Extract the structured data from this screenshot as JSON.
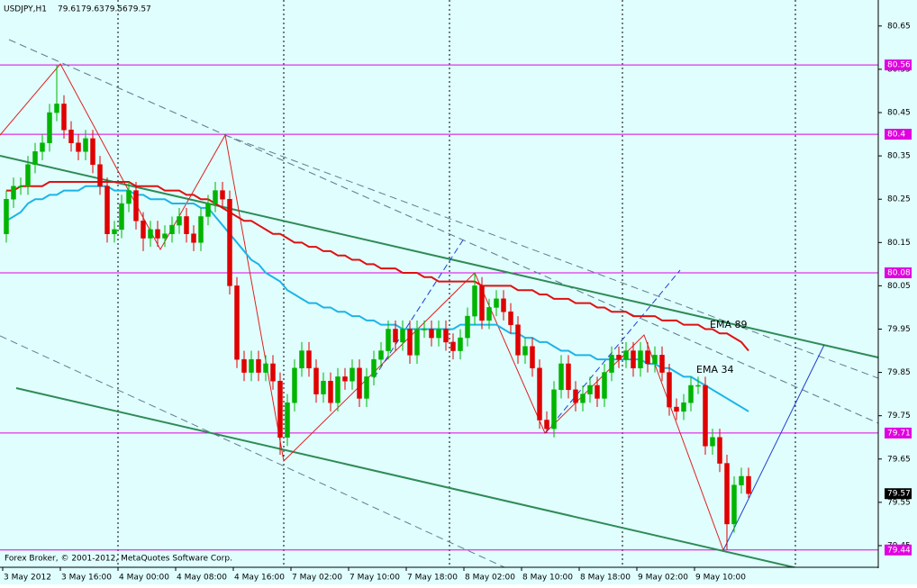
{
  "chart_data": {
    "type": "candlestick",
    "symbol": "USDJPY,H1",
    "footer": "Forex Broker, © 2001-2012, MetaQuotes Software Corp.",
    "up_color": "#00b400",
    "down_color": "#e00000",
    "grid": false,
    "x_labels": [
      "3 May 2012",
      "3 May 16:00",
      "4 May 00:00",
      "4 May 08:00",
      "4 May 16:00",
      "7 May 02:00",
      "7 May 10:00",
      "7 May 18:00",
      "8 May 02:00",
      "8 May 10:00",
      "8 May 18:00",
      "9 May 02:00",
      "9 May 10:00"
    ],
    "ylim": [
      79.4,
      80.71
    ],
    "yticks": [
      80.65,
      80.55,
      80.45,
      80.35,
      80.25,
      80.15,
      80.05,
      79.95,
      79.85,
      79.75,
      79.65,
      79.55,
      79.45
    ],
    "open": [
      80.17,
      80.25,
      80.28,
      80.28,
      80.33,
      80.36,
      80.38,
      80.45,
      80.47,
      80.41,
      80.38,
      80.36,
      80.39,
      80.33,
      80.28,
      80.17,
      80.18,
      80.24,
      80.27,
      80.2,
      80.16,
      80.18,
      80.16,
      80.17,
      80.19,
      80.21,
      80.17,
      80.15,
      80.21,
      80.24,
      80.27,
      80.25,
      80.05,
      79.88,
      79.85,
      79.88,
      79.85,
      79.87,
      79.83,
      79.7,
      79.78,
      79.86,
      79.9,
      79.86,
      79.8,
      79.83,
      79.78,
      79.84,
      79.83,
      79.86,
      79.79,
      79.84,
      79.88,
      79.9,
      79.95,
      79.92,
      79.95,
      79.89,
      79.95,
      79.95,
      79.93,
      79.95,
      79.92,
      79.9,
      79.93,
      79.98,
      80.05,
      79.97,
      80.0,
      80.02,
      79.99,
      79.96,
      79.89,
      79.91,
      79.86,
      79.74,
      79.72,
      79.81,
      79.87,
      79.81,
      79.78,
      79.8,
      79.82,
      79.79,
      79.85,
      79.89,
      79.88,
      79.9,
      79.86,
      79.9,
      79.87,
      79.89,
      79.85,
      79.77,
      79.76,
      79.78,
      79.82,
      79.82,
      79.68,
      79.7,
      79.64,
      79.5,
      79.59,
      79.61
    ],
    "high": [
      80.27,
      80.3,
      80.3,
      80.35,
      80.38,
      80.4,
      80.47,
      80.56,
      80.49,
      80.43,
      80.4,
      80.41,
      80.41,
      80.35,
      80.3,
      80.2,
      80.26,
      80.29,
      80.29,
      80.22,
      80.2,
      80.2,
      80.19,
      80.21,
      80.23,
      80.23,
      80.19,
      80.23,
      80.26,
      80.29,
      80.29,
      80.27,
      80.07,
      79.9,
      79.9,
      79.9,
      79.89,
      79.89,
      79.85,
      79.8,
      79.88,
      79.92,
      79.92,
      79.88,
      79.85,
      79.85,
      79.86,
      79.86,
      79.88,
      79.88,
      79.86,
      79.9,
      79.92,
      79.97,
      79.97,
      79.97,
      79.97,
      79.97,
      79.97,
      79.97,
      79.97,
      79.97,
      79.94,
      79.95,
      80.0,
      80.08,
      80.07,
      80.02,
      80.04,
      80.04,
      80.01,
      79.98,
      79.93,
      79.93,
      79.88,
      79.76,
      79.83,
      79.89,
      79.89,
      79.83,
      79.82,
      79.84,
      79.84,
      79.87,
      79.91,
      79.91,
      79.92,
      79.92,
      79.92,
      79.92,
      79.91,
      79.91,
      79.87,
      79.79,
      79.8,
      79.84,
      79.84,
      79.84,
      79.72,
      79.72,
      79.66,
      79.61,
      79.63,
      79.63
    ],
    "low": [
      80.15,
      80.23,
      80.26,
      80.26,
      80.31,
      80.34,
      80.36,
      80.43,
      80.39,
      80.36,
      80.34,
      80.34,
      80.31,
      80.26,
      80.15,
      80.15,
      80.16,
      80.22,
      80.18,
      80.13,
      80.14,
      80.14,
      80.14,
      80.15,
      80.17,
      80.15,
      80.13,
      80.13,
      80.19,
      80.22,
      80.23,
      80.03,
      79.86,
      79.83,
      79.83,
      79.83,
      79.83,
      79.81,
      79.66,
      79.68,
      79.76,
      79.84,
      79.84,
      79.78,
      79.78,
      79.76,
      79.76,
      79.81,
      79.81,
      79.77,
      79.77,
      79.82,
      79.86,
      79.88,
      79.9,
      79.9,
      79.87,
      79.87,
      79.93,
      79.91,
      79.91,
      79.9,
      79.88,
      79.88,
      79.91,
      79.96,
      79.95,
      79.95,
      79.98,
      79.97,
      79.94,
      79.87,
      79.87,
      79.84,
      79.72,
      79.71,
      79.7,
      79.79,
      79.79,
      79.76,
      79.76,
      79.78,
      79.77,
      79.77,
      79.83,
      79.86,
      79.86,
      79.84,
      79.84,
      79.85,
      79.85,
      79.83,
      79.75,
      79.74,
      79.74,
      79.76,
      79.8,
      79.66,
      79.66,
      79.62,
      79.44,
      79.48,
      79.57,
      79.56
    ],
    "close": [
      80.25,
      80.28,
      80.28,
      80.33,
      80.36,
      80.38,
      80.45,
      80.47,
      80.41,
      80.38,
      80.36,
      80.39,
      80.33,
      80.28,
      80.17,
      80.18,
      80.24,
      80.27,
      80.2,
      80.16,
      80.18,
      80.16,
      80.17,
      80.19,
      80.21,
      80.17,
      80.15,
      80.21,
      80.24,
      80.27,
      80.25,
      80.05,
      79.88,
      79.85,
      79.88,
      79.85,
      79.87,
      79.83,
      79.7,
      79.78,
      79.86,
      79.9,
      79.86,
      79.8,
      79.83,
      79.78,
      79.84,
      79.83,
      79.86,
      79.79,
      79.84,
      79.88,
      79.9,
      79.95,
      79.92,
      79.95,
      79.89,
      79.95,
      79.95,
      79.93,
      79.95,
      79.92,
      79.9,
      79.93,
      79.98,
      80.05,
      79.97,
      80.0,
      80.02,
      79.99,
      79.96,
      79.89,
      79.91,
      79.86,
      79.74,
      79.72,
      79.81,
      79.87,
      79.81,
      79.78,
      79.8,
      79.82,
      79.79,
      79.85,
      79.89,
      79.88,
      79.9,
      79.86,
      79.9,
      79.87,
      79.89,
      79.85,
      79.77,
      79.76,
      79.78,
      79.82,
      79.82,
      79.68,
      79.7,
      79.64,
      79.5,
      79.59,
      79.61,
      79.57
    ],
    "series": [
      {
        "name": "EMA 34",
        "color": "#1eb4e6",
        "values": [
          80.2,
          80.21,
          80.22,
          80.24,
          80.25,
          80.25,
          80.26,
          80.26,
          80.27,
          80.27,
          80.27,
          80.28,
          80.28,
          80.28,
          80.28,
          80.27,
          80.27,
          80.27,
          80.26,
          80.26,
          80.25,
          80.25,
          80.25,
          80.24,
          80.24,
          80.24,
          80.24,
          80.23,
          80.23,
          80.21,
          80.19,
          80.17,
          80.15,
          80.13,
          80.11,
          80.1,
          80.08,
          80.07,
          80.06,
          80.04,
          80.03,
          80.02,
          80.01,
          80.01,
          80.0,
          80.0,
          79.99,
          79.99,
          79.98,
          79.98,
          79.97,
          79.97,
          79.96,
          79.96,
          79.96,
          79.95,
          79.95,
          79.95,
          79.95,
          79.95,
          79.95,
          79.95,
          79.95,
          79.96,
          79.96,
          79.96,
          79.96,
          79.96,
          79.96,
          79.95,
          79.94,
          79.94,
          79.93,
          79.93,
          79.92,
          79.92,
          79.91,
          79.9,
          79.9,
          79.89,
          79.89,
          79.89,
          79.88,
          79.88,
          79.88,
          79.88,
          79.88,
          79.88,
          79.88,
          79.87,
          79.87,
          79.86,
          79.86,
          79.85,
          79.84,
          79.84,
          79.83,
          79.82,
          79.81,
          79.8,
          79.79,
          79.78,
          79.77,
          79.76
        ]
      },
      {
        "name": "EMA 89",
        "color": "#e01010",
        "values": [
          80.27,
          80.27,
          80.28,
          80.28,
          80.28,
          80.28,
          80.29,
          80.29,
          80.29,
          80.29,
          80.29,
          80.29,
          80.29,
          80.29,
          80.29,
          80.29,
          80.29,
          80.29,
          80.28,
          80.28,
          80.28,
          80.28,
          80.27,
          80.27,
          80.27,
          80.26,
          80.26,
          80.25,
          80.25,
          80.24,
          80.23,
          80.22,
          80.21,
          80.2,
          80.2,
          80.19,
          80.18,
          80.17,
          80.17,
          80.16,
          80.15,
          80.15,
          80.14,
          80.14,
          80.13,
          80.13,
          80.12,
          80.12,
          80.11,
          80.11,
          80.1,
          80.1,
          80.09,
          80.09,
          80.09,
          80.08,
          80.08,
          80.08,
          80.07,
          80.07,
          80.06,
          80.06,
          80.06,
          80.06,
          80.06,
          80.06,
          80.05,
          80.05,
          80.05,
          80.05,
          80.05,
          80.04,
          80.04,
          80.04,
          80.03,
          80.03,
          80.02,
          80.02,
          80.02,
          80.01,
          80.01,
          80.01,
          80.0,
          80.0,
          79.99,
          79.99,
          79.99,
          79.98,
          79.98,
          79.98,
          79.98,
          79.97,
          79.97,
          79.97,
          79.96,
          79.96,
          79.96,
          79.95,
          79.95,
          79.94,
          79.94,
          79.93,
          79.92,
          79.9
        ]
      }
    ],
    "price_lines": [
      80.56,
      80.4,
      80.08,
      79.71,
      79.44
    ],
    "price_line_color": "#e000e0",
    "current_price": 79.57
  }
}
